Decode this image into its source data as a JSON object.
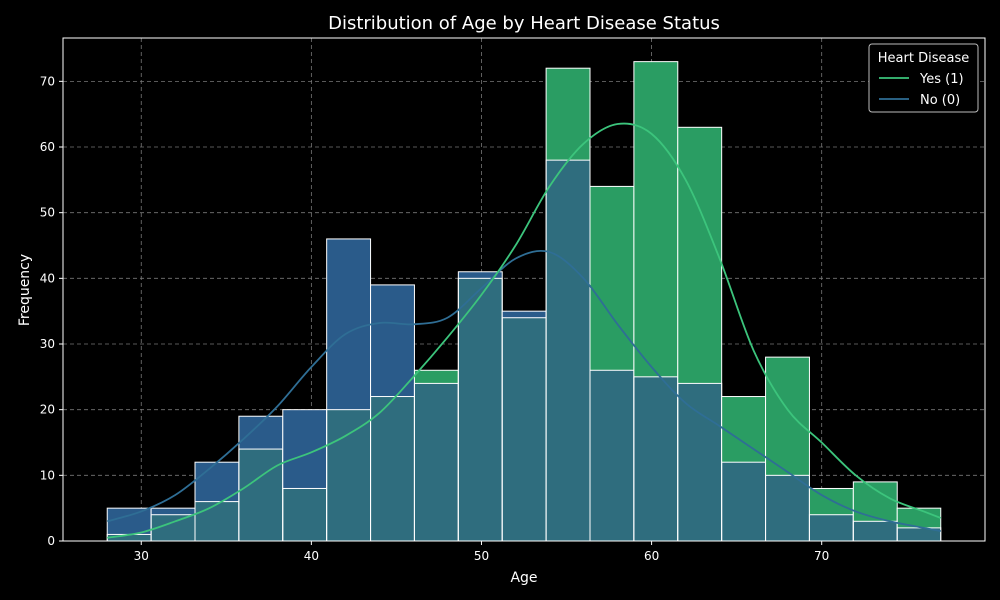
{
  "chart_data": {
    "type": "histogram",
    "title": "Distribution of Age by Heart Disease Status",
    "xlabel": "Age",
    "ylabel": "Frequency",
    "xlim": [
      25.4,
      79.6
    ],
    "ylim": [
      0,
      76.6
    ],
    "x_ticks": [
      30,
      40,
      50,
      60,
      70
    ],
    "y_ticks": [
      0,
      10,
      20,
      30,
      40,
      50,
      60,
      70
    ],
    "grid": true,
    "legend": {
      "title": "Heart Disease",
      "placement": "top-right"
    },
    "bin_edges": [
      28.0,
      30.58,
      33.16,
      35.74,
      38.32,
      40.9,
      43.48,
      46.06,
      48.64,
      51.22,
      53.8,
      56.38,
      58.96,
      61.54,
      64.12,
      66.7,
      69.28,
      71.86,
      74.44,
      77.0
    ],
    "series": [
      {
        "name": "Yes (1)",
        "color": "#2a9d63",
        "values": [
          1,
          4,
          6,
          14,
          8,
          20,
          22,
          26,
          40,
          34,
          72,
          54,
          73,
          63,
          22,
          28,
          8,
          9,
          5
        ],
        "kde": [
          [
            28,
            0.5
          ],
          [
            30,
            1.3
          ],
          [
            32,
            3
          ],
          [
            34,
            5
          ],
          [
            36,
            8
          ],
          [
            38,
            11.5
          ],
          [
            40,
            13.5
          ],
          [
            42,
            16
          ],
          [
            44,
            19.5
          ],
          [
            46,
            25
          ],
          [
            48,
            31
          ],
          [
            50,
            37.5
          ],
          [
            52,
            45
          ],
          [
            54,
            54
          ],
          [
            56,
            60.5
          ],
          [
            58,
            63.5
          ],
          [
            60,
            62
          ],
          [
            62,
            55
          ],
          [
            64,
            43
          ],
          [
            66,
            29
          ],
          [
            68,
            20
          ],
          [
            70,
            15
          ],
          [
            72,
            10
          ],
          [
            74,
            6.5
          ],
          [
            76,
            4.5
          ],
          [
            77,
            3.5
          ]
        ]
      },
      {
        "name": "No (0)",
        "color": "#2a5b8a",
        "values": [
          5,
          5,
          12,
          19,
          20,
          46,
          39,
          24,
          41,
          35,
          58,
          26,
          25,
          24,
          12,
          10,
          4,
          3,
          2
        ],
        "kde": [
          [
            28,
            3
          ],
          [
            30,
            4.5
          ],
          [
            32,
            7
          ],
          [
            34,
            11
          ],
          [
            36,
            15.5
          ],
          [
            38,
            20.5
          ],
          [
            40,
            26.5
          ],
          [
            42,
            31.5
          ],
          [
            44,
            33.2
          ],
          [
            46,
            33
          ],
          [
            48,
            34
          ],
          [
            50,
            38.5
          ],
          [
            52,
            43
          ],
          [
            54,
            44
          ],
          [
            56,
            40
          ],
          [
            58,
            33
          ],
          [
            60,
            26.5
          ],
          [
            62,
            21
          ],
          [
            64,
            17.5
          ],
          [
            66,
            14
          ],
          [
            68,
            10.5
          ],
          [
            70,
            7
          ],
          [
            72,
            4.5
          ],
          [
            74,
            3
          ],
          [
            76,
            2
          ],
          [
            77,
            1.5
          ]
        ]
      }
    ]
  },
  "colors": {
    "background": "#000000",
    "axes_frame": "#ffffff",
    "grid": "#777777",
    "bar_edge": "#ffffff",
    "overlap_fill": "#2f6d7e",
    "yes_kde": "#3cc47c",
    "no_kde": "#2f6e95"
  }
}
